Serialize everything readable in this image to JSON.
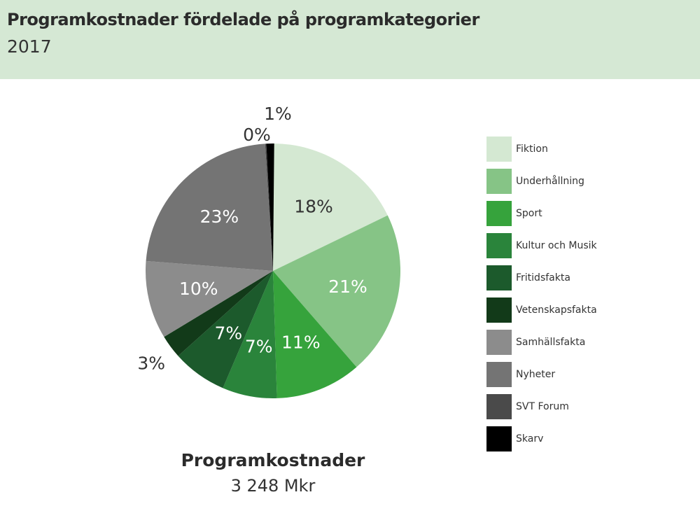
{
  "header": {
    "title": "Programkostnader fördelade på programkategorier",
    "subtitle": "2017"
  },
  "chart_data": {
    "type": "pie",
    "title": "Programkostnader fördelade på programkategorier",
    "subtitle": "2017",
    "categories": [
      "Fiktion",
      "Underhållning",
      "Sport",
      "Kultur och Musik",
      "Fritidsfakta",
      "Vetenskapsfakta",
      "Samhällsfakta",
      "Nyheter",
      "SVT Forum",
      "Skarv"
    ],
    "values": [
      18,
      21,
      11,
      7,
      7,
      3,
      10,
      23,
      0,
      1
    ],
    "labels": [
      "18%",
      "21%",
      "11%",
      "7%",
      "7%",
      "3%",
      "10%",
      "23%",
      "0%",
      "1%"
    ],
    "colors": [
      "#d4e8d2",
      "#86c486",
      "#36a33c",
      "#2a843b",
      "#1c5a2c",
      "#123a19",
      "#8c8c8c",
      "#747474",
      "#4a4a4a",
      "#000000"
    ],
    "legend_position": "right",
    "total_label": "Programkostnader",
    "total_value": "3 248 Mkr"
  }
}
